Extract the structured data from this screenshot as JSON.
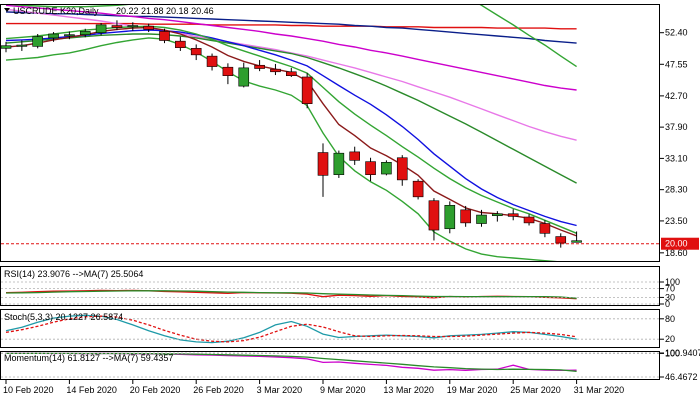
{
  "chart_data": {
    "type": "candlestick",
    "symbol_header": "USCRUDE.K20,Daily",
    "ohlc_header": "20.22 21.88 20.18 20.46",
    "price_labels": [
      "52.40",
      "47.55",
      "42.70",
      "37.90",
      "33.10",
      "28.30",
      "23.50",
      "18.60"
    ],
    "current_price_label": "20.00",
    "ylim": [
      17.5,
      56.5
    ],
    "grid": false,
    "bull_color": "#2e9e2e",
    "bear_color": "#e01010",
    "dates": [
      "10 Feb 2020",
      "11 Feb 2020",
      "12 Feb 2020",
      "13 Feb 2020",
      "14 Feb 2020",
      "17 Feb 2020",
      "18 Feb 2020",
      "19 Feb 2020",
      "20 Feb 2020",
      "21 Feb 2020",
      "24 Feb 2020",
      "25 Feb 2020",
      "26 Feb 2020",
      "27 Feb 2020",
      "28 Feb 2020",
      "2 Mar 2020",
      "3 Mar 2020",
      "4 Mar 2020",
      "5 Mar 2020",
      "6 Mar 2020",
      "9 Mar 2020",
      "10 Mar 2020",
      "11 Mar 2020",
      "12 Mar 2020",
      "13 Mar 2020",
      "16 Mar 2020",
      "17 Mar 2020",
      "18 Mar 2020",
      "19 Mar 2020",
      "20 Mar 2020",
      "23 Mar 2020",
      "24 Mar 2020",
      "25 Mar 2020",
      "26 Mar 2020",
      "27 Mar 2020",
      "30 Mar 2020",
      "31 Mar 2020"
    ],
    "x_tick_labels": [
      {
        "index": 0,
        "label": "10 Feb 2020"
      },
      {
        "index": 4,
        "label": "14 Feb 2020"
      },
      {
        "index": 8,
        "label": "20 Feb 2020"
      },
      {
        "index": 12,
        "label": "26 Feb 2020"
      },
      {
        "index": 16,
        "label": "3 Mar 2020"
      },
      {
        "index": 20,
        "label": "9 Mar 2020"
      },
      {
        "index": 24,
        "label": "13 Mar 2020"
      },
      {
        "index": 28,
        "label": "19 Mar 2020"
      },
      {
        "index": 32,
        "label": "25 Mar 2020"
      },
      {
        "index": 36,
        "label": "31 Mar 2020"
      }
    ],
    "candles": [
      {
        "o": 50.0,
        "h": 51.0,
        "l": 49.4,
        "c": 50.4
      },
      {
        "o": 50.3,
        "h": 51.2,
        "l": 49.6,
        "c": 50.5
      },
      {
        "o": 50.3,
        "h": 52.2,
        "l": 50.0,
        "c": 51.8
      },
      {
        "o": 51.6,
        "h": 52.5,
        "l": 51.0,
        "c": 52.2
      },
      {
        "o": 51.9,
        "h": 52.6,
        "l": 51.4,
        "c": 52.1
      },
      {
        "o": 52.1,
        "h": 53.0,
        "l": 51.7,
        "c": 52.6
      },
      {
        "o": 52.4,
        "h": 53.9,
        "l": 52.0,
        "c": 53.6
      },
      {
        "o": 53.5,
        "h": 54.3,
        "l": 52.8,
        "c": 53.2
      },
      {
        "o": 53.3,
        "h": 54.0,
        "l": 52.7,
        "c": 53.5
      },
      {
        "o": 53.4,
        "h": 53.8,
        "l": 52.5,
        "c": 52.9
      },
      {
        "o": 52.6,
        "h": 53.0,
        "l": 50.8,
        "c": 51.2
      },
      {
        "o": 51.1,
        "h": 51.8,
        "l": 49.6,
        "c": 50.1
      },
      {
        "o": 50.0,
        "h": 50.6,
        "l": 48.2,
        "c": 49.0
      },
      {
        "o": 48.8,
        "h": 49.2,
        "l": 46.6,
        "c": 47.2
      },
      {
        "o": 47.1,
        "h": 47.7,
        "l": 44.5,
        "c": 45.8
      },
      {
        "o": 44.2,
        "h": 47.8,
        "l": 44.0,
        "c": 47.0
      },
      {
        "o": 47.4,
        "h": 48.2,
        "l": 46.5,
        "c": 46.9
      },
      {
        "o": 46.8,
        "h": 47.6,
        "l": 45.9,
        "c": 46.4
      },
      {
        "o": 46.4,
        "h": 47.0,
        "l": 45.6,
        "c": 45.8
      },
      {
        "o": 45.6,
        "h": 46.2,
        "l": 40.8,
        "c": 41.5
      },
      {
        "o": 34.0,
        "h": 35.4,
        "l": 27.2,
        "c": 30.5
      },
      {
        "o": 30.6,
        "h": 34.3,
        "l": 30.1,
        "c": 33.9
      },
      {
        "o": 34.1,
        "h": 34.9,
        "l": 32.1,
        "c": 32.8
      },
      {
        "o": 32.6,
        "h": 33.2,
        "l": 29.6,
        "c": 30.6
      },
      {
        "o": 30.7,
        "h": 32.8,
        "l": 30.5,
        "c": 32.5
      },
      {
        "o": 33.2,
        "h": 33.6,
        "l": 28.9,
        "c": 29.8
      },
      {
        "o": 29.6,
        "h": 29.9,
        "l": 26.8,
        "c": 27.2
      },
      {
        "o": 26.6,
        "h": 27.0,
        "l": 20.5,
        "c": 22.1
      },
      {
        "o": 22.3,
        "h": 26.5,
        "l": 21.6,
        "c": 25.9
      },
      {
        "o": 25.2,
        "h": 25.8,
        "l": 22.6,
        "c": 23.2
      },
      {
        "o": 23.1,
        "h": 25.2,
        "l": 22.6,
        "c": 24.4
      },
      {
        "o": 24.3,
        "h": 25.0,
        "l": 23.4,
        "c": 24.6
      },
      {
        "o": 24.6,
        "h": 25.3,
        "l": 23.6,
        "c": 24.2
      },
      {
        "o": 24.1,
        "h": 24.5,
        "l": 22.8,
        "c": 23.2
      },
      {
        "o": 23.1,
        "h": 23.6,
        "l": 21.0,
        "c": 21.6
      },
      {
        "o": 21.1,
        "h": 21.6,
        "l": 19.4,
        "c": 20.1
      },
      {
        "o": 20.22,
        "h": 21.88,
        "l": 20.18,
        "c": 20.46
      }
    ],
    "moving_averages": [
      {
        "color": "#e01010",
        "values": [
          53.8,
          53.8,
          53.8,
          53.8,
          53.8,
          53.8,
          53.8,
          53.8,
          53.8,
          53.7,
          53.7,
          53.7,
          53.7,
          53.6,
          53.6,
          53.6,
          53.6,
          53.6,
          53.5,
          53.5,
          53.4,
          53.4,
          53.4,
          53.4,
          53.3,
          53.3,
          53.3,
          53.2,
          53.2,
          53.2,
          53.2,
          53.1,
          53.1,
          53.1,
          53.1,
          53.0,
          53.0
        ]
      },
      {
        "color": "#0a1f8a",
        "values": [
          55.6,
          55.5,
          55.4,
          55.3,
          55.3,
          55.2,
          55.1,
          55.0,
          54.9,
          54.9,
          54.8,
          54.7,
          54.6,
          54.5,
          54.4,
          54.3,
          54.2,
          54.1,
          54.0,
          53.9,
          53.8,
          53.7,
          53.5,
          53.4,
          53.2,
          53.1,
          52.9,
          52.7,
          52.5,
          52.3,
          52.1,
          51.9,
          51.7,
          51.5,
          51.2,
          51.0,
          50.8
        ]
      },
      {
        "color": "#cc00cc",
        "values": [
          56.6,
          56.4,
          56.2,
          56.0,
          55.8,
          55.6,
          55.4,
          55.1,
          54.9,
          54.6,
          54.4,
          54.1,
          53.8,
          53.5,
          53.2,
          52.9,
          52.6,
          52.2,
          51.9,
          51.5,
          51.1,
          50.6,
          50.2,
          49.7,
          49.3,
          48.8,
          48.3,
          47.8,
          47.3,
          46.8,
          46.3,
          45.8,
          45.3,
          44.8,
          44.3,
          43.9,
          43.6
        ]
      },
      {
        "color": "#e878e8",
        "values": [
          56.0,
          55.7,
          55.4,
          55.1,
          54.8,
          54.5,
          54.2,
          53.8,
          53.4,
          53.1,
          52.7,
          52.3,
          51.8,
          51.4,
          51.0,
          50.6,
          50.2,
          49.8,
          49.3,
          48.8,
          48.2,
          47.6,
          47.0,
          46.3,
          45.6,
          44.9,
          44.1,
          43.3,
          42.5,
          41.6,
          40.7,
          39.8,
          38.9,
          38.0,
          37.2,
          36.5,
          35.9
        ]
      },
      {
        "color": "#2a8a2a",
        "values": [
          50.8,
          51.0,
          51.2,
          51.4,
          51.6,
          51.8,
          52.0,
          52.1,
          52.2,
          52.2,
          52.1,
          51.9,
          51.6,
          51.2,
          50.8,
          50.4,
          50.0,
          49.6,
          49.2,
          48.6,
          47.8,
          47.0,
          46.1,
          45.2,
          44.2,
          43.1,
          42.0,
          40.8,
          39.6,
          38.4,
          37.1,
          35.8,
          34.5,
          33.2,
          31.9,
          30.6,
          29.3
        ]
      },
      {
        "color": "#1010e0",
        "values": [
          51.2,
          51.3,
          51.4,
          51.6,
          51.8,
          52.0,
          52.3,
          52.5,
          52.7,
          52.8,
          52.7,
          52.5,
          52.1,
          51.6,
          51.0,
          50.4,
          49.7,
          49.0,
          48.2,
          47.3,
          45.8,
          44.3,
          42.8,
          41.4,
          39.8,
          38.0,
          36.0,
          33.8,
          31.9,
          30.0,
          28.4,
          27.1,
          26.0,
          25.1,
          24.2,
          23.4,
          22.8
        ]
      },
      {
        "color": "#8b1a1a",
        "values": [
          50.2,
          50.4,
          50.8,
          51.3,
          51.7,
          52.1,
          52.6,
          52.9,
          53.1,
          53.2,
          52.8,
          52.2,
          51.3,
          50.2,
          48.9,
          48.0,
          47.3,
          46.8,
          46.3,
          45.0,
          41.5,
          38.3,
          36.6,
          34.7,
          33.5,
          32.1,
          30.5,
          28.1,
          26.8,
          25.5,
          24.8,
          24.6,
          24.3,
          23.9,
          23.1,
          22.1,
          21.2
        ]
      },
      {
        "color": "#33a533",
        "values": [
          51.5,
          51.7,
          51.9,
          52.2,
          52.5,
          52.8,
          53.0,
          53.2,
          53.3,
          53.4,
          53.2,
          52.8,
          52.2,
          51.4,
          50.4,
          49.6,
          48.8,
          48.0,
          47.2,
          46.2,
          44.0,
          41.8,
          39.9,
          38.2,
          36.6,
          34.9,
          33.3,
          31.6,
          30.0,
          28.6,
          27.4,
          26.4,
          25.4,
          24.6,
          23.6,
          22.6,
          21.6
        ]
      },
      {
        "color": "#33a533",
        "values": [
          48.2,
          48.4,
          48.6,
          49.0,
          49.3,
          49.8,
          50.4,
          50.9,
          51.3,
          51.6,
          51.4,
          50.6,
          49.4,
          48.0,
          46.4,
          45.0,
          44.2,
          43.6,
          42.8,
          41.2,
          37.0,
          33.4,
          31.2,
          29.5,
          28.2,
          26.5,
          24.6,
          21.8,
          20.4,
          19.2,
          18.4,
          18.0,
          17.8,
          17.6,
          17.4,
          17.2,
          17.0
        ]
      },
      {
        "color": "#33a533",
        "values": [
          56.8,
          56.6,
          56.5,
          56.4,
          56.4,
          56.4,
          56.5,
          56.6,
          56.8,
          57.0,
          57.3,
          57.6,
          58.0,
          58.5,
          59.0,
          59.5,
          60.0,
          60.6,
          61.2,
          62.0,
          63.2,
          64.0,
          64.6,
          64.5,
          64.0,
          63.3,
          62.2,
          60.5,
          59.3,
          58.0,
          56.6,
          55.1,
          53.6,
          52.0,
          50.5,
          48.8,
          47.2
        ]
      }
    ],
    "indicators": [
      {
        "title": "RSI(14) 23.9076 -->MA(7) 25.5064",
        "scale_labels": [
          "100",
          "70",
          "30",
          "0"
        ],
        "ylim": [
          0,
          100
        ],
        "series": [
          {
            "color": "#e01010",
            "values": [
              52,
              53,
              56,
              58,
              59,
              60,
              62,
              61,
              62,
              60,
              57,
              55,
              53,
              51,
              48,
              52,
              51,
              50,
              49,
              45,
              33,
              40,
              38,
              35,
              38,
              34,
              32,
              28,
              34,
              32,
              34,
              35,
              34,
              33,
              30,
              28,
              24
            ]
          },
          {
            "color": "#2a8a2a",
            "values": [
              50,
              51,
              52,
              54,
              56,
              57,
              58,
              59,
              60,
              60,
              60,
              59,
              58,
              56,
              54,
              53,
              52,
              51,
              51,
              50,
              47,
              45,
              43,
              41,
              39,
              38,
              36,
              34,
              34,
              33,
              33,
              33,
              33,
              33,
              33,
              32,
              26
            ]
          }
        ]
      },
      {
        "title": "Stoch(5,3,3) 20.1227 26.5874",
        "scale_labels": [
          "80",
          "20"
        ],
        "ylim": [
          0,
          100
        ],
        "series": [
          {
            "color": "#1e9aa8",
            "values": [
              45,
              55,
              70,
              82,
              88,
              90,
              88,
              78,
              62,
              45,
              30,
              18,
              12,
              10,
              14,
              24,
              40,
              62,
              72,
              58,
              35,
              25,
              28,
              30,
              32,
              30,
              28,
              24,
              30,
              32,
              34,
              38,
              42,
              40,
              34,
              28,
              20
            ]
          },
          {
            "color": "#e01010",
            "values": [
              40,
              48,
              58,
              70,
              80,
              86,
              88,
              85,
              76,
              62,
              46,
              32,
              20,
              14,
              12,
              16,
              26,
              42,
              58,
              64,
              56,
              42,
              30,
              28,
              30,
              31,
              30,
              28,
              28,
              29,
              32,
              35,
              38,
              40,
              38,
              34,
              27
            ]
          }
        ]
      },
      {
        "title": "Momentum(14) 61.8127 -->MA(7) 59.4357",
        "scale_labels": [
          "100.9407",
          "100",
          "46.4672"
        ],
        "ylim": [
          46.4672,
          100.9407
        ],
        "series": [
          {
            "color": "#cc00cc",
            "values": [
              100.3,
              100.6,
              100.2,
              99.8,
              100.0,
              99.6,
              100.2,
              99.9,
              99.5,
              99.2,
              98.6,
              97.8,
              96.9,
              96.1,
              95.0,
              94.2,
              93.4,
              91.8,
              90.2,
              87.5,
              79.5,
              80.5,
              77.5,
              75.0,
              72.8,
              68.4,
              66.2,
              62.0,
              63.2,
              61.6,
              63.5,
              64.2,
              73.2,
              63.8,
              62.2,
              61.4,
              61.8
            ]
          },
          {
            "color": "#2a8a2a",
            "values": [
              100.0,
              100.1,
              100.2,
              100.1,
              100.0,
              99.9,
              99.9,
              99.8,
              99.7,
              99.5,
              99.2,
              98.8,
              98.2,
              97.5,
              96.8,
              96.0,
              95.2,
              94.3,
              93.2,
              91.6,
              88.4,
              85.9,
              83.2,
              80.5,
              78.1,
              75.2,
              72.2,
              69.4,
              67.5,
              65.6,
              64.4,
              63.4,
              64.1,
              63.7,
              63.4,
              62.5,
              59.4
            ]
          }
        ]
      }
    ]
  }
}
